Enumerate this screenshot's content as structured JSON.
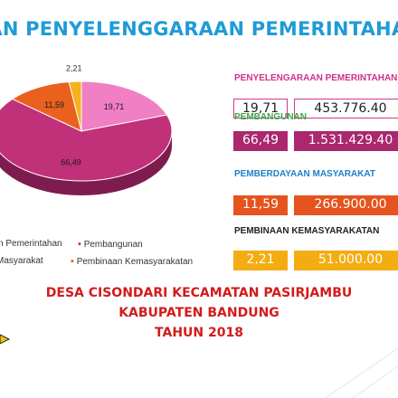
{
  "title": "RAN PENYELENGGARAAN PEMERINTAHAN DE",
  "chart_data": {
    "type": "pie",
    "categories": [
      "Penyelenggaraan Pemerintahan",
      "Pembangunan",
      "Pemberdayaan Masyarakat",
      "Pembinaan Kemasyarakatan"
    ],
    "values": [
      19.71,
      66.49,
      11.59,
      2.21
    ],
    "value_labels": [
      "19,71",
      "66,49",
      "11,59",
      "2,21"
    ],
    "colors": [
      "#f17fc4",
      "#c0317a",
      "#e9601f",
      "#f5b21c"
    ],
    "side_colors": [
      "#b85a92",
      "#7e1c4f",
      "#9a3c10",
      "#a87508"
    ],
    "legend_position": "bottom",
    "legend": [
      "n Pemerintahan",
      "Pembangunan",
      "Masyarakat",
      "Pembinaan Kemasyarakatan"
    ]
  },
  "sections": [
    {
      "label": "PENYELENGARAAN PEMERINTAHAN",
      "percent": "19,71",
      "amount": "453.776.40",
      "label_color": "#d0318a",
      "style": "outline",
      "fill": "#ffffff"
    },
    {
      "label": "PEMBANGUNAN",
      "percent": "66,49",
      "amount": "1.531.429.40",
      "label_color": "#3aa94a",
      "style": "filled",
      "fill": "#a9286e"
    },
    {
      "label": "PEMBERDAYAAN MASYARAKAT",
      "percent": "11,59",
      "amount": "266.900.00",
      "label_color": "#1f7fc6",
      "style": "filled",
      "fill": "#e5541e"
    },
    {
      "label": "PEMBINAAN KEMASYARAKATAN",
      "percent": "2,21",
      "amount": "51.000.00",
      "label_color": "#222222",
      "style": "filled",
      "fill": "#f3ad12"
    }
  ],
  "footer": {
    "line1": "DESA CISONDARI KECAMATAN PASIRJAMBU",
    "line2": "KABUPATEN BANDUNG",
    "line3": "TAHUN 2018"
  }
}
